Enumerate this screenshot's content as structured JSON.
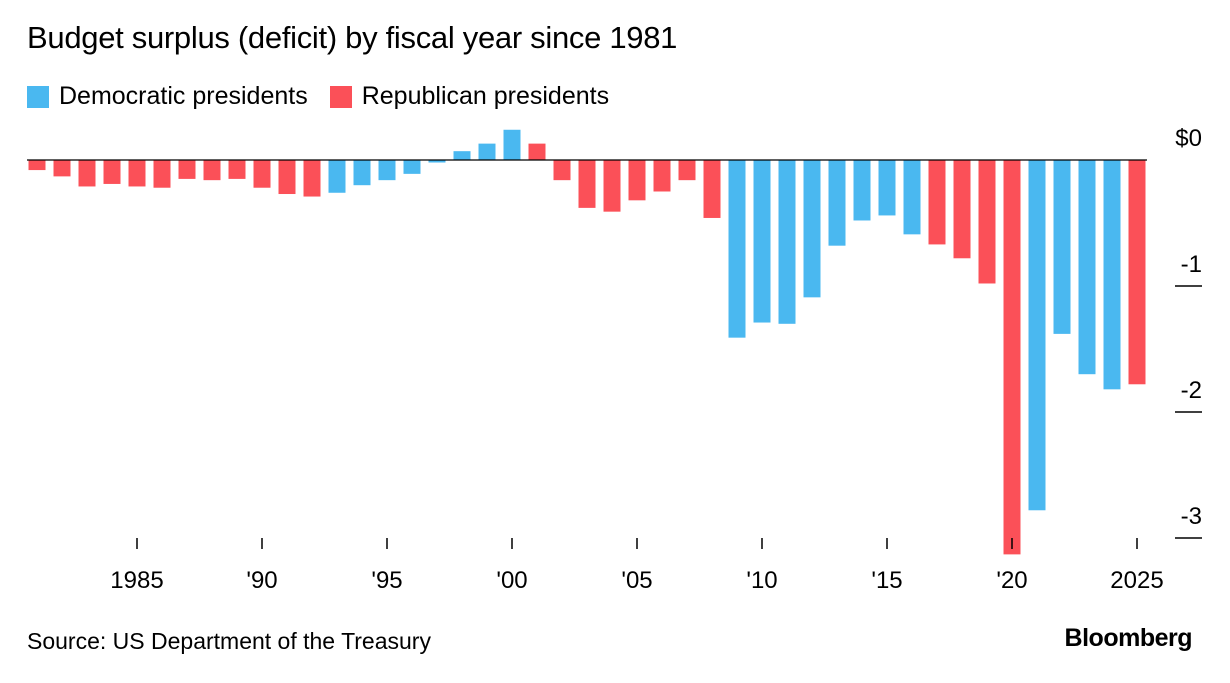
{
  "title": "Budget surplus (deficit) by fiscal year since 1981",
  "legend": {
    "dem_label": "Democratic presidents",
    "rep_label": "Republican presidents"
  },
  "source": "Source: US Department of the Treasury",
  "brand": "Bloomberg",
  "colors": {
    "dem": "#4ab8f0",
    "rep": "#fb5058"
  },
  "chart_data": {
    "type": "bar",
    "title": "Budget surplus (deficit) by fiscal year since 1981",
    "units": "trillions of US dollars",
    "xlabel": "",
    "ylabel": "",
    "ylim": [
      -3.15,
      0.25
    ],
    "y_ticks": [
      0,
      -1,
      -2,
      -3
    ],
    "y_tick_labels": [
      "$0",
      "-1",
      "-2",
      "-3"
    ],
    "x_ticks": [
      1985,
      1990,
      1995,
      2000,
      2005,
      2010,
      2015,
      2020,
      2025
    ],
    "x_tick_labels": [
      "1985",
      "'90",
      "'95",
      "'00",
      "'05",
      "'10",
      "'15",
      "'20",
      "2025"
    ],
    "series": [
      {
        "name": "Budget surplus (deficit)",
        "data": [
          {
            "year": 1981,
            "value": -0.08,
            "party": "rep"
          },
          {
            "year": 1982,
            "value": -0.13,
            "party": "rep"
          },
          {
            "year": 1983,
            "value": -0.21,
            "party": "rep"
          },
          {
            "year": 1984,
            "value": -0.19,
            "party": "rep"
          },
          {
            "year": 1985,
            "value": -0.21,
            "party": "rep"
          },
          {
            "year": 1986,
            "value": -0.22,
            "party": "rep"
          },
          {
            "year": 1987,
            "value": -0.15,
            "party": "rep"
          },
          {
            "year": 1988,
            "value": -0.16,
            "party": "rep"
          },
          {
            "year": 1989,
            "value": -0.15,
            "party": "rep"
          },
          {
            "year": 1990,
            "value": -0.22,
            "party": "rep"
          },
          {
            "year": 1991,
            "value": -0.27,
            "party": "rep"
          },
          {
            "year": 1992,
            "value": -0.29,
            "party": "rep"
          },
          {
            "year": 1993,
            "value": -0.26,
            "party": "dem"
          },
          {
            "year": 1994,
            "value": -0.2,
            "party": "dem"
          },
          {
            "year": 1995,
            "value": -0.16,
            "party": "dem"
          },
          {
            "year": 1996,
            "value": -0.11,
            "party": "dem"
          },
          {
            "year": 1997,
            "value": -0.02,
            "party": "dem"
          },
          {
            "year": 1998,
            "value": 0.07,
            "party": "dem"
          },
          {
            "year": 1999,
            "value": 0.13,
            "party": "dem"
          },
          {
            "year": 2000,
            "value": 0.24,
            "party": "dem"
          },
          {
            "year": 2001,
            "value": 0.13,
            "party": "rep"
          },
          {
            "year": 2002,
            "value": -0.16,
            "party": "rep"
          },
          {
            "year": 2003,
            "value": -0.38,
            "party": "rep"
          },
          {
            "year": 2004,
            "value": -0.41,
            "party": "rep"
          },
          {
            "year": 2005,
            "value": -0.32,
            "party": "rep"
          },
          {
            "year": 2006,
            "value": -0.25,
            "party": "rep"
          },
          {
            "year": 2007,
            "value": -0.16,
            "party": "rep"
          },
          {
            "year": 2008,
            "value": -0.46,
            "party": "rep"
          },
          {
            "year": 2009,
            "value": -1.41,
            "party": "dem"
          },
          {
            "year": 2010,
            "value": -1.29,
            "party": "dem"
          },
          {
            "year": 2011,
            "value": -1.3,
            "party": "dem"
          },
          {
            "year": 2012,
            "value": -1.09,
            "party": "dem"
          },
          {
            "year": 2013,
            "value": -0.68,
            "party": "dem"
          },
          {
            "year": 2014,
            "value": -0.48,
            "party": "dem"
          },
          {
            "year": 2015,
            "value": -0.44,
            "party": "dem"
          },
          {
            "year": 2016,
            "value": -0.59,
            "party": "dem"
          },
          {
            "year": 2017,
            "value": -0.67,
            "party": "rep"
          },
          {
            "year": 2018,
            "value": -0.78,
            "party": "rep"
          },
          {
            "year": 2019,
            "value": -0.98,
            "party": "rep"
          },
          {
            "year": 2020,
            "value": -3.13,
            "party": "rep"
          },
          {
            "year": 2021,
            "value": -2.78,
            "party": "dem"
          },
          {
            "year": 2022,
            "value": -1.38,
            "party": "dem"
          },
          {
            "year": 2023,
            "value": -1.7,
            "party": "dem"
          },
          {
            "year": 2024,
            "value": -1.82,
            "party": "dem"
          },
          {
            "year": 2025,
            "value": -1.78,
            "party": "rep"
          }
        ]
      }
    ],
    "legend": [
      "Democratic presidents",
      "Republican presidents"
    ],
    "legend_position": "top-left",
    "grid": false
  }
}
